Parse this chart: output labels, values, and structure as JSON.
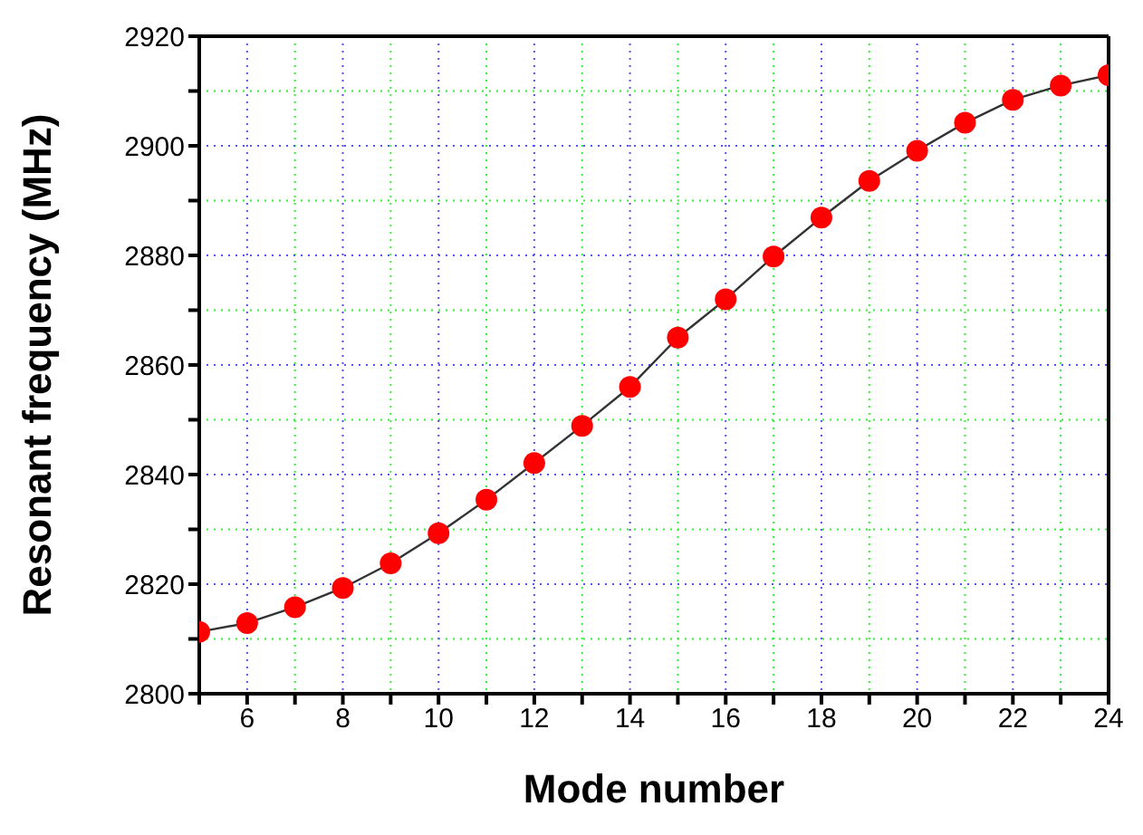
{
  "chart_data": {
    "type": "line",
    "xlabel": "Mode number",
    "ylabel": "Resonant frequency (MHz)",
    "x": [
      5,
      6,
      7,
      8,
      9,
      10,
      11,
      12,
      13,
      14,
      15,
      16,
      17,
      18,
      19,
      20,
      21,
      22,
      23,
      24
    ],
    "series": [
      {
        "color": "#ff0000",
        "values": [
          2811.3,
          2812.9,
          2815.8,
          2819.3,
          2823.8,
          2829.3,
          2835.4,
          2842.1,
          2848.9,
          2856,
          2865,
          2872,
          2879.8,
          2886.9,
          2893.6,
          2899.1,
          2904.2,
          2908.4,
          2911,
          2912.9
        ]
      }
    ],
    "xlim": [
      5,
      24
    ],
    "ylim": [
      2800,
      2920
    ],
    "xticks": [
      {
        "value": 5,
        "label": null
      },
      6,
      {
        "value": 7,
        "label": null
      },
      8,
      {
        "value": 9,
        "label": null
      },
      10,
      {
        "value": 11,
        "label": null
      },
      12,
      {
        "value": 13,
        "label": null
      },
      14,
      {
        "value": 15,
        "label": null
      },
      16,
      {
        "value": 17,
        "label": null
      },
      18,
      {
        "value": 19,
        "label": null
      },
      20,
      {
        "value": 21,
        "label": null
      },
      22,
      {
        "value": 23,
        "label": null
      },
      24
    ],
    "yticks": [
      2800,
      {
        "value": 2810,
        "label": null
      },
      2820,
      {
        "value": 2830,
        "label": null
      },
      2840,
      {
        "value": 2850,
        "label": null
      },
      2860,
      {
        "value": 2870,
        "label": null
      },
      2880,
      {
        "value": 2890,
        "label": null
      },
      2900,
      {
        "value": 2910,
        "label": null
      },
      2920
    ],
    "grid": true,
    "marker": "circle",
    "line_style": "solid"
  }
}
